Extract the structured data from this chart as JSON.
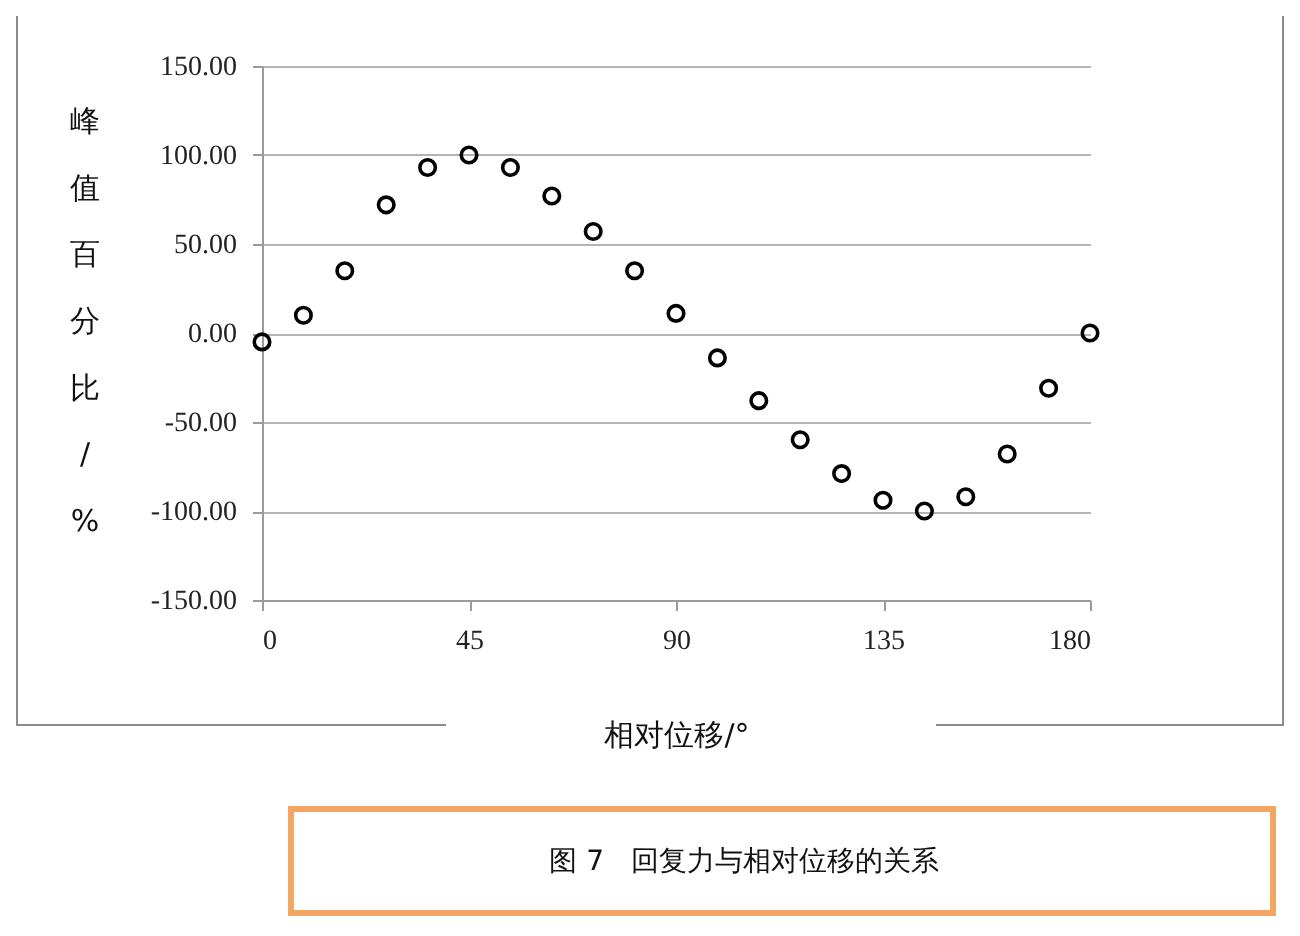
{
  "chart_data": {
    "type": "scatter",
    "xlabel": "相对位移/°",
    "ylabel": "峰值百分比/%",
    "annotations": [
      "图 7   回复力与相对位移的关系"
    ],
    "x": [
      0,
      9,
      18,
      27,
      36,
      45,
      54,
      63,
      72,
      81,
      90,
      99,
      108,
      117,
      126,
      135,
      144,
      153,
      162,
      171,
      180
    ],
    "values": [
      -5,
      10,
      35,
      72,
      93,
      100,
      93,
      77,
      57,
      35,
      11,
      -14,
      -38,
      -60,
      -79,
      -94,
      -100,
      -92,
      -68,
      -31,
      0
    ],
    "color": "#000000",
    "marker": "circle",
    "xlim": [
      0,
      180
    ],
    "xticks": [
      0,
      45,
      90,
      135,
      180
    ],
    "ylim": [
      -150,
      150
    ],
    "yticks": [
      {
        "value": -150,
        "label": "-150.00"
      },
      {
        "value": -100,
        "label": "-100.00"
      },
      {
        "value": -50,
        "label": "-50.00"
      },
      {
        "value": 0,
        "label": "0.00"
      },
      {
        "value": 50,
        "label": "50.00"
      },
      {
        "value": 100,
        "label": "100.00"
      },
      {
        "value": 150,
        "label": "150.00"
      }
    ],
    "grid": "y"
  }
}
